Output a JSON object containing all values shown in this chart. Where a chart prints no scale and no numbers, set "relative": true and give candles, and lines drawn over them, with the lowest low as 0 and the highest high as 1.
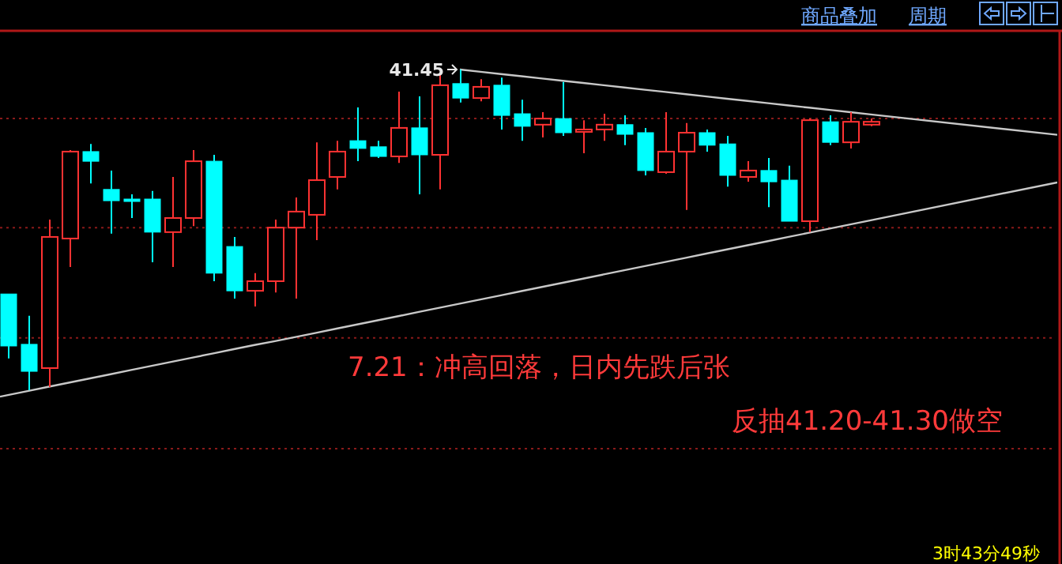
{
  "chart_data": {
    "type": "candlestick",
    "relative": true,
    "categories": [
      null,
      null,
      null,
      null,
      null,
      null,
      null,
      null,
      null,
      null,
      null,
      null,
      null,
      null,
      null,
      null,
      null,
      null,
      null,
      null,
      null,
      null,
      null,
      null,
      null,
      null,
      null,
      null,
      null,
      null,
      null,
      null,
      null,
      null,
      null,
      null,
      null,
      null,
      null,
      null,
      null,
      null,
      null
    ],
    "ohlc": [
      [
        0.3,
        0.3,
        0.099,
        0.138
      ],
      [
        0.143,
        0.232,
        0,
        0.059
      ],
      [
        0.069,
        0.532,
        0.01,
        0.478
      ],
      [
        0.473,
        0.749,
        0.384,
        0.744
      ],
      [
        0.744,
        0.768,
        0.645,
        0.714
      ],
      [
        0.626,
        0.685,
        0.488,
        0.591
      ],
      [
        0.596,
        0.611,
        0.537,
        0.591
      ],
      [
        0.596,
        0.621,
        0.399,
        0.493
      ],
      [
        0.493,
        0.665,
        0.384,
        0.537
      ],
      [
        0.537,
        0.749,
        0.512,
        0.714
      ],
      [
        0.714,
        0.734,
        0.34,
        0.365
      ],
      [
        0.448,
        0.478,
        0.286,
        0.31
      ],
      [
        0.31,
        0.365,
        0.261,
        0.34
      ],
      [
        0.34,
        0.532,
        0.305,
        0.507
      ],
      [
        0.507,
        0.601,
        0.286,
        0.557
      ],
      [
        0.547,
        0.773,
        0.468,
        0.655
      ],
      [
        0.665,
        0.778,
        0.626,
        0.744
      ],
      [
        0.778,
        0.882,
        0.714,
        0.754
      ],
      [
        0.759,
        0.778,
        0.724,
        0.729
      ],
      [
        0.729,
        0.931,
        0.709,
        0.818
      ],
      [
        0.818,
        0.916,
        0.611,
        0.734
      ],
      [
        0.734,
        0.985,
        0.626,
        0.951
      ],
      [
        0.956,
        1.0,
        0.897,
        0.911
      ],
      [
        0.911,
        0.97,
        0.901,
        0.946
      ],
      [
        0.951,
        0.975,
        0.813,
        0.857
      ],
      [
        0.862,
        0.906,
        0.778,
        0.823
      ],
      [
        0.828,
        0.867,
        0.788,
        0.847
      ],
      [
        0.847,
        0.961,
        0.793,
        0.803
      ],
      [
        0.808,
        0.842,
        0.739,
        0.813
      ],
      [
        0.813,
        0.862,
        0.778,
        0.828
      ],
      [
        0.828,
        0.857,
        0.764,
        0.798
      ],
      [
        0.803,
        0.818,
        0.67,
        0.685
      ],
      [
        0.68,
        0.867,
        0.675,
        0.744
      ],
      [
        0.744,
        0.833,
        0.562,
        0.803
      ],
      [
        0.803,
        0.813,
        0.744,
        0.764
      ],
      [
        0.768,
        0.793,
        0.635,
        0.67
      ],
      [
        0.665,
        0.714,
        0.65,
        0.685
      ],
      [
        0.685,
        0.724,
        0.571,
        0.65
      ],
      [
        0.655,
        0.7,
        0.527,
        0.527
      ],
      [
        0.527,
        0.847,
        0.493,
        0.842
      ],
      [
        0.837,
        0.857,
        0.764,
        0.773
      ],
      [
        0.773,
        0.867,
        0.754,
        0.837
      ],
      [
        0.828,
        0.847,
        0.823,
        0.837
      ]
    ],
    "colors": [
      "#00ffff",
      "#00ffff",
      "#ff3232",
      "#ff3232",
      "#00ffff",
      "#00ffff",
      "#00ffff",
      "#00ffff",
      "#ff3232",
      "#ff3232",
      "#00ffff",
      "#00ffff",
      "#ff3232",
      "#ff3232",
      "#ff3232",
      "#ff3232",
      "#ff3232",
      "#00ffff",
      "#00ffff",
      "#ff3232",
      "#00ffff",
      "#ff3232",
      "#00ffff",
      "#ff3232",
      "#00ffff",
      "#00ffff",
      "#ff3232",
      "#00ffff",
      "#ff3232",
      "#ff3232",
      "#00ffff",
      "#00ffff",
      "#ff3232",
      "#ff3232",
      "#00ffff",
      "#00ffff",
      "#ff3232",
      "#00ffff",
      "#00ffff",
      "#ff3232",
      "#00ffff",
      "#ff3232",
      "#ff3232"
    ],
    "series": [
      {
        "type": "line",
        "color": "#c8c8c8",
        "values": [
          null,
          null,
          null,
          null,
          null,
          null,
          null,
          null,
          null,
          null,
          null,
          null,
          null,
          null,
          null,
          null,
          null,
          null,
          null,
          null,
          null,
          null,
          1.0,
          0.993,
          0.986,
          0.979,
          0.972,
          0.965,
          0.958,
          0.951,
          0.944,
          0.937,
          0.93,
          0.923,
          0.916,
          0.909,
          0.902,
          0.895,
          0.888,
          0.881,
          0.874,
          0.867,
          0.86
        ]
      },
      {
        "type": "line",
        "color": "#c8c8c8",
        "values": [
          -0.015,
          -0.002,
          0.011,
          0.024,
          0.037,
          0.05,
          0.063,
          0.076,
          0.089,
          0.102,
          0.115,
          0.128,
          0.141,
          0.153,
          0.166,
          0.179,
          0.192,
          0.205,
          0.218,
          0.231,
          0.244,
          0.257,
          0.27,
          0.283,
          0.296,
          0.309,
          0.322,
          0.335,
          0.348,
          0.361,
          0.374,
          0.387,
          0.4,
          0.413,
          0.426,
          0.439,
          0.452,
          0.465,
          0.478,
          0.491,
          0.504,
          0.517,
          0.53
        ]
      }
    ],
    "ref_lines": [
      {
        "axis": "y",
        "value": 0.847,
        "color": "#8b1a1a",
        "line_style": "dotted"
      },
      {
        "axis": "y",
        "value": 0.507,
        "color": "#8b1a1a",
        "line_style": "dotted"
      },
      {
        "axis": "y",
        "value": 0.163,
        "color": "#8b1a1a",
        "line_style": "dotted"
      },
      {
        "axis": "y",
        "value": -0.182,
        "color": "#8b1a1a",
        "line_style": "dotted"
      }
    ],
    "annotations": [
      "41.45",
      "7.21：冲高回落，日内先跌后张",
      "反抽41.20-41.30做空",
      "商品叠加",
      "周期",
      "3时43分49秒"
    ]
  }
}
